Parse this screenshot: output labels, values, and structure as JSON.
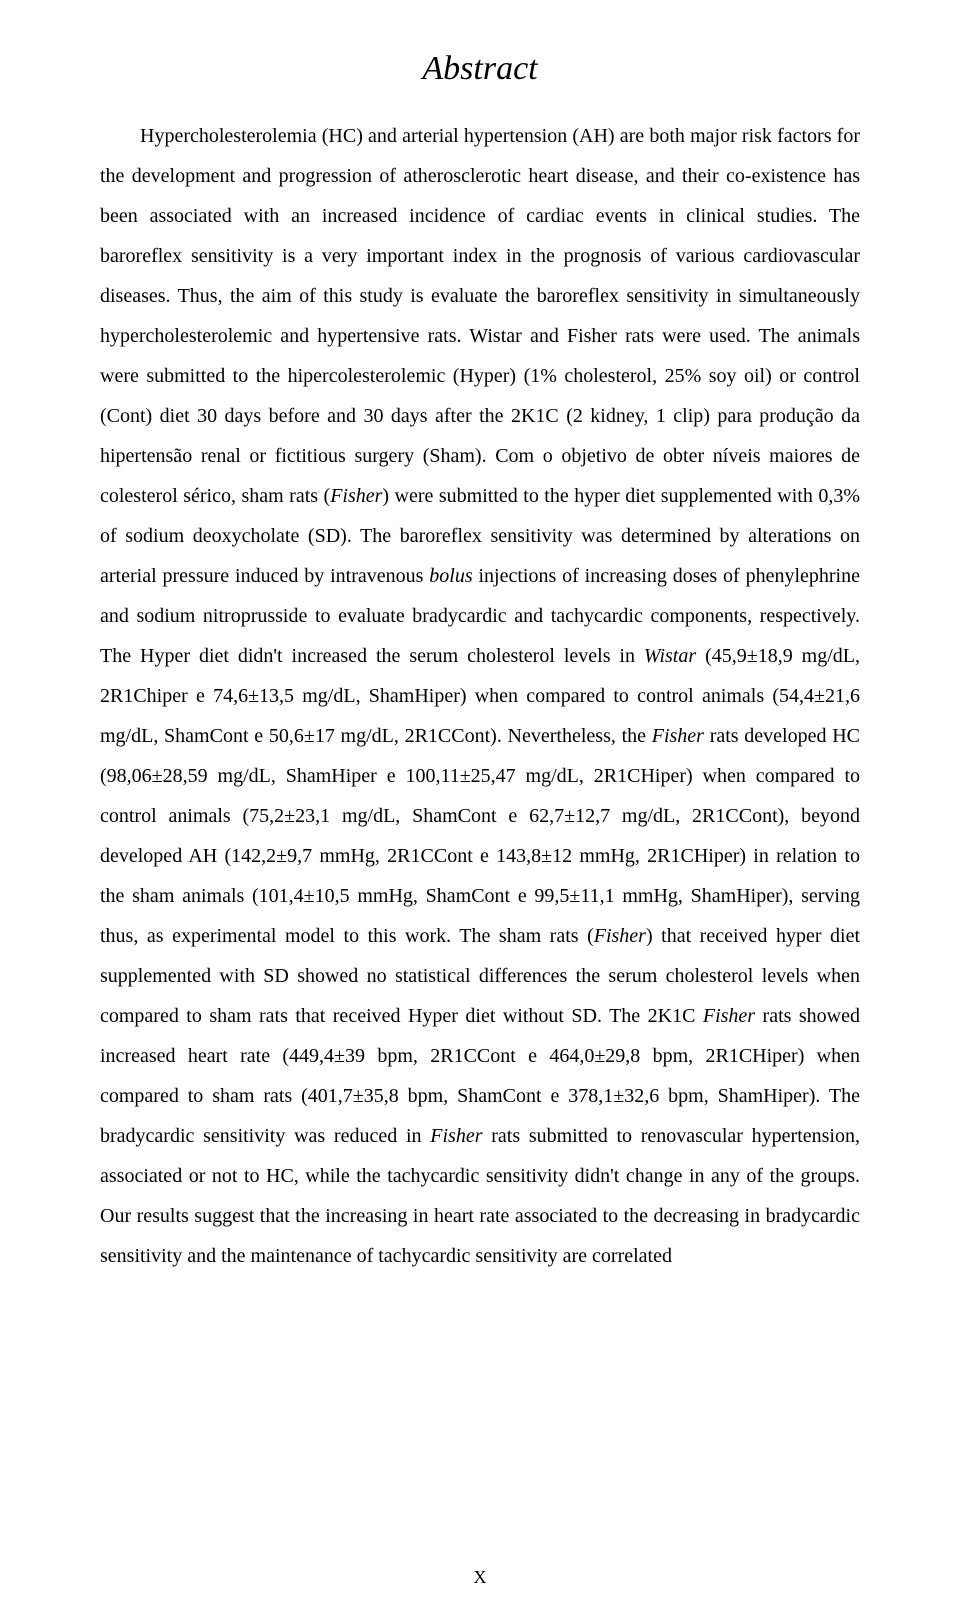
{
  "document": {
    "title": "Abstract",
    "page_number": "X",
    "font_family": "Times New Roman",
    "title_fontsize": 34,
    "body_fontsize": 20,
    "text_color": "#000000",
    "background_color": "#ffffff",
    "segments": [
      {
        "text": "Hypercholesterolemia (HC) and arterial hypertension (AH) are both major risk factors for the development and progression of atherosclerotic heart disease, and their co-existence has been associated with an increased incidence of cardiac events in clinical studies. The baroreflex sensitivity is a very important index in the prognosis of various cardiovascular diseases. Thus, the aim of this study is evaluate the baroreflex sensitivity in simultaneously hypercholesterolemic and hypertensive rats. Wistar and Fisher rats were used. The animals were submitted to the hipercolesterolemic (Hyper) (1% cholesterol, 25% soy oil) or control (Cont) diet 30 days before and 30 days after the 2K1C (2 kidney, 1 clip) para produção da hipertensão renal or fictitious surgery (Sham). Com o objetivo de obter níveis maiores de colesterol sérico, sham rats (",
        "italic": false
      },
      {
        "text": "Fisher",
        "italic": true
      },
      {
        "text": ") were submitted to the hyper diet supplemented with 0,3% of sodium deoxycholate (SD). The baroreflex sensitivity was determined by alterations on arterial pressure induced by intravenous ",
        "italic": false
      },
      {
        "text": "bolus",
        "italic": true
      },
      {
        "text": " injections of increasing doses of phenylephrine and sodium nitroprusside to evaluate bradycardic and tachycardic components, respectively. The Hyper diet didn't increased the serum cholesterol levels in ",
        "italic": false
      },
      {
        "text": "Wistar",
        "italic": true
      },
      {
        "text": " (45,9±18,9 mg/dL, 2R1Chiper e 74,6±13,5 mg/dL, ShamHiper) when compared to control animals (54,4±21,6 mg/dL, ShamCont e 50,6±17 mg/dL, 2R1CCont). Nevertheless, the ",
        "italic": false
      },
      {
        "text": "Fisher",
        "italic": true
      },
      {
        "text": " rats developed HC (98,06±28,59 mg/dL, ShamHiper e 100,11±25,47 mg/dL, 2R1CHiper) when compared to control animals (75,2±23,1 mg/dL, ShamCont e 62,7±12,7 mg/dL, 2R1CCont), beyond developed AH (142,2±9,7 mmHg, 2R1CCont e 143,8±12 mmHg, 2R1CHiper) in relation to the sham animals (101,4±10,5 mmHg, ShamCont e 99,5±11,1 mmHg, ShamHiper), serving thus, as experimental model to this work. The sham rats (",
        "italic": false
      },
      {
        "text": "Fisher",
        "italic": true
      },
      {
        "text": ") that received hyper diet supplemented with SD showed no statistical differences the serum cholesterol levels when compared to sham rats that received Hyper diet without SD. The 2K1C  ",
        "italic": false
      },
      {
        "text": "Fisher",
        "italic": true
      },
      {
        "text": " rats showed increased heart rate (449,4±39 bpm, 2R1CCont e 464,0±29,8 bpm, 2R1CHiper) when compared to sham rats (401,7±35,8 bpm, ShamCont e 378,1±32,6 bpm, ShamHiper).  The bradycardic sensitivity was reduced in ",
        "italic": false
      },
      {
        "text": "Fisher",
        "italic": true
      },
      {
        "text": " rats submitted to renovascular hypertension, associated or not to HC, while the tachycardic sensitivity didn't change in any of the groups. Our results suggest that the increasing in heart rate associated to the decreasing in bradycardic sensitivity and the maintenance of tachycardic sensitivity are correlated",
        "italic": false
      }
    ]
  }
}
